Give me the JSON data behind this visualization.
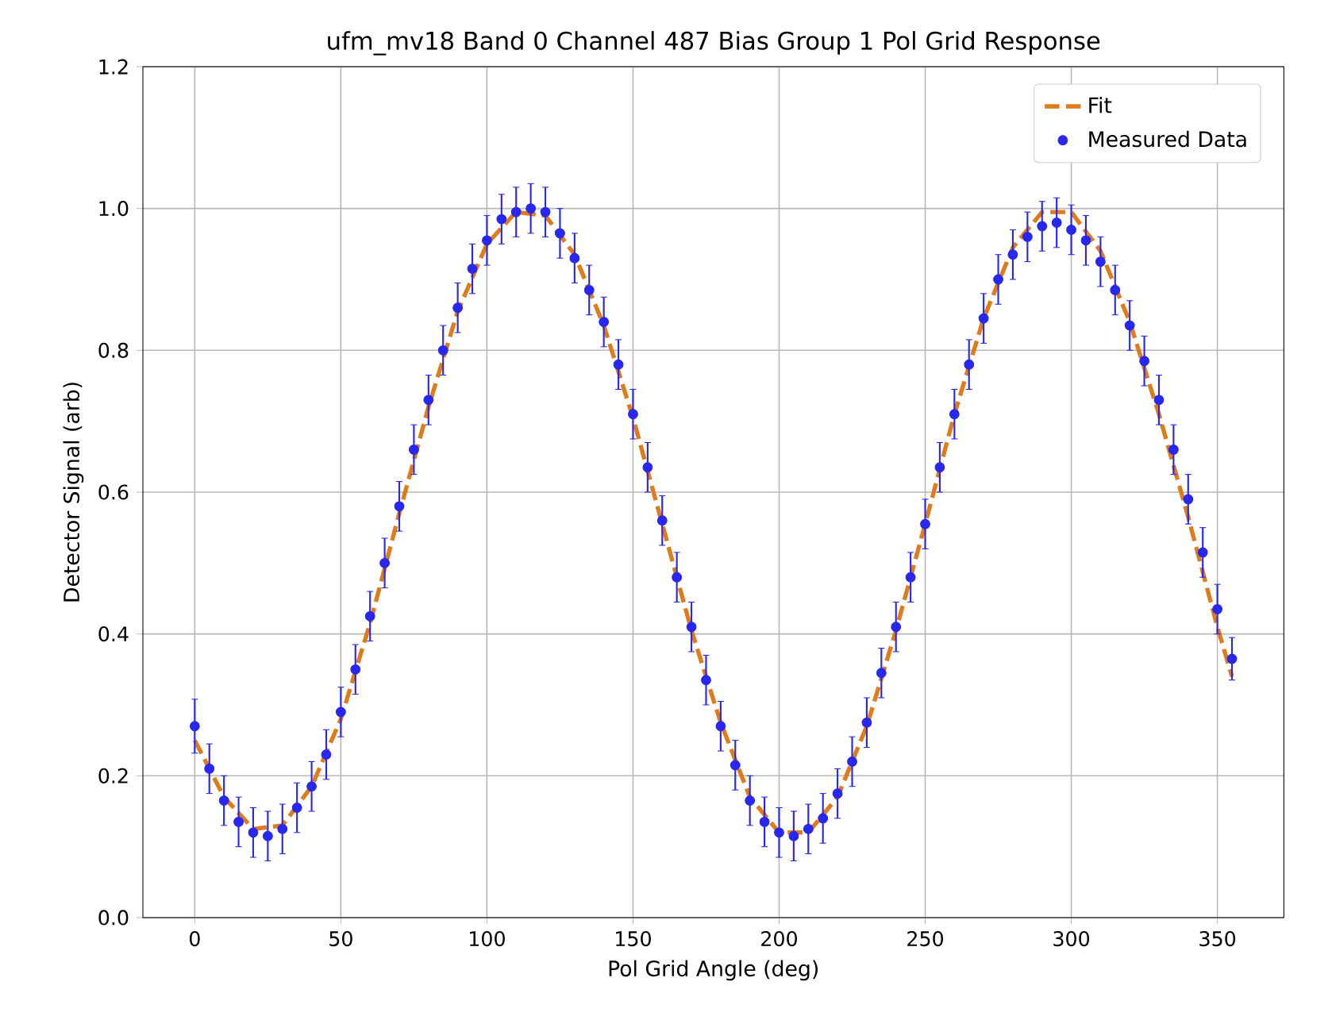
{
  "chart_data": {
    "type": "scatter",
    "title": "ufm_mv18 Band 0 Channel 487 Bias Group 1 Pol Grid Response",
    "xlabel": "Pol Grid Angle (deg)",
    "ylabel": "Detector Signal (arb)",
    "xlim": [
      -17.75,
      372.75
    ],
    "ylim": [
      0,
      1.2
    ],
    "xticks": [
      0,
      50,
      100,
      150,
      200,
      250,
      300,
      350
    ],
    "yticks": [
      {
        "value": 0,
        "label": "0.0"
      },
      {
        "value": 0.2,
        "label": "0.2"
      },
      {
        "value": 0.4,
        "label": "0.4"
      },
      {
        "value": 0.6,
        "label": "0.6"
      },
      {
        "value": 0.8,
        "label": "0.8"
      },
      {
        "value": 1.0,
        "label": "1.0"
      },
      {
        "value": 1.2,
        "label": "1.2"
      }
    ],
    "grid": true,
    "legend": "top right",
    "series": [
      {
        "name": "Fit",
        "type": "line",
        "color": "#e07b1a",
        "line_style": "dashed",
        "marker": "none",
        "x": [
          0,
          10,
          20,
          30,
          40,
          50,
          60,
          70,
          80,
          90,
          100,
          110,
          120,
          130,
          140,
          150,
          160,
          170,
          180,
          190,
          200,
          210,
          220,
          230,
          240,
          250,
          260,
          270,
          280,
          290,
          300,
          310,
          320,
          330,
          340,
          350,
          355
        ],
        "values": [
          0.25,
          0.17,
          0.125,
          0.13,
          0.185,
          0.28,
          0.415,
          0.57,
          0.72,
          0.855,
          0.95,
          0.995,
          0.99,
          0.935,
          0.835,
          0.705,
          0.555,
          0.405,
          0.275,
          0.17,
          0.12,
          0.12,
          0.17,
          0.27,
          0.405,
          0.555,
          0.71,
          0.845,
          0.945,
          0.995,
          0.995,
          0.94,
          0.84,
          0.71,
          0.565,
          0.41,
          0.34
        ]
      },
      {
        "name": "Measured Data",
        "color": "#2727f0",
        "marker": "circle",
        "x": [
          0,
          5,
          10,
          15,
          20,
          25,
          30,
          35,
          40,
          45,
          50,
          55,
          60,
          65,
          70,
          75,
          80,
          85,
          90,
          95,
          100,
          105,
          110,
          115,
          120,
          125,
          130,
          135,
          140,
          145,
          150,
          155,
          160,
          165,
          170,
          175,
          180,
          185,
          190,
          195,
          200,
          205,
          210,
          215,
          220,
          225,
          230,
          235,
          240,
          245,
          250,
          255,
          260,
          265,
          270,
          275,
          280,
          285,
          290,
          295,
          300,
          305,
          310,
          315,
          320,
          325,
          330,
          335,
          340,
          345,
          350,
          355
        ],
        "values": [
          0.27,
          0.21,
          0.165,
          0.135,
          0.12,
          0.115,
          0.125,
          0.155,
          0.185,
          0.23,
          0.29,
          0.35,
          0.425,
          0.5,
          0.58,
          0.66,
          0.73,
          0.8,
          0.86,
          0.915,
          0.955,
          0.985,
          0.995,
          1.0,
          0.995,
          0.965,
          0.93,
          0.885,
          0.84,
          0.78,
          0.71,
          0.635,
          0.56,
          0.48,
          0.41,
          0.335,
          0.27,
          0.215,
          0.165,
          0.135,
          0.12,
          0.115,
          0.125,
          0.14,
          0.175,
          0.22,
          0.275,
          0.345,
          0.41,
          0.48,
          0.555,
          0.635,
          0.71,
          0.78,
          0.845,
          0.9,
          0.935,
          0.96,
          0.975,
          0.98,
          0.97,
          0.955,
          0.925,
          0.885,
          0.835,
          0.785,
          0.73,
          0.66,
          0.59,
          0.515,
          0.435,
          0.365
        ],
        "errors": [
          0.038,
          0.035,
          0.035,
          0.035,
          0.035,
          0.035,
          0.035,
          0.035,
          0.035,
          0.035,
          0.035,
          0.035,
          0.035,
          0.035,
          0.035,
          0.035,
          0.035,
          0.035,
          0.035,
          0.035,
          0.035,
          0.035,
          0.035,
          0.035,
          0.035,
          0.035,
          0.035,
          0.035,
          0.035,
          0.035,
          0.035,
          0.035,
          0.035,
          0.035,
          0.035,
          0.035,
          0.035,
          0.035,
          0.035,
          0.035,
          0.035,
          0.035,
          0.035,
          0.035,
          0.035,
          0.035,
          0.035,
          0.035,
          0.035,
          0.035,
          0.035,
          0.035,
          0.035,
          0.035,
          0.035,
          0.035,
          0.035,
          0.035,
          0.035,
          0.035,
          0.035,
          0.035,
          0.035,
          0.035,
          0.035,
          0.035,
          0.035,
          0.035,
          0.035,
          0.035,
          0.035,
          0.03
        ]
      }
    ]
  }
}
